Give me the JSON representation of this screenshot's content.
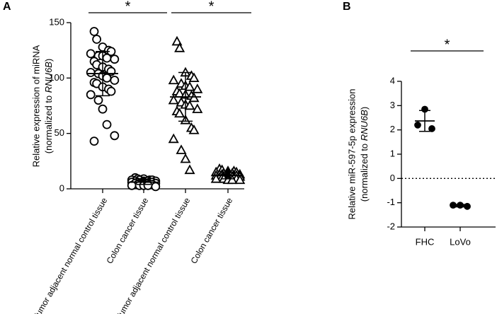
{
  "chart_data": [
    {
      "type": "dot",
      "panel": "A",
      "ylabel": "Relative expression of miRNA",
      "ylabel_parts": [
        "(normalized to ",
        "RNU6B",
        ")"
      ],
      "categories": [
        "Tumor adjacent normal control tissue",
        "Colon cancer tissue",
        "Tumor adjacent normal control tissue",
        "Colon cancer tissue"
      ],
      "values": [
        [
          142,
          135,
          128,
          125,
          124,
          122,
          120,
          120,
          118,
          117,
          115,
          112,
          110,
          108,
          106,
          105,
          104,
          102,
          100,
          98,
          96,
          95,
          92,
          90,
          88,
          85,
          80,
          72,
          58,
          48,
          43
        ],
        [
          10,
          9,
          9,
          8,
          8,
          8,
          8,
          7,
          7,
          7,
          7,
          6,
          6,
          6,
          6,
          6,
          5,
          5,
          5,
          5,
          5,
          4,
          4,
          4,
          4,
          3,
          3,
          3,
          3,
          2
        ],
        [
          133,
          127,
          105,
          102,
          100,
          98,
          95,
          93,
          92,
          90,
          88,
          86,
          85,
          84,
          82,
          80,
          78,
          76,
          75,
          72,
          70,
          68,
          62,
          55,
          53,
          45,
          35,
          27,
          17
        ],
        [
          18,
          17,
          16,
          16,
          15,
          15,
          14,
          14,
          14,
          13,
          13,
          13,
          12,
          12,
          12,
          12,
          11,
          11,
          11,
          11,
          10,
          10,
          10,
          10,
          9,
          9,
          9,
          8,
          8,
          8
        ]
      ],
      "means": [
        104,
        6,
        83,
        12
      ],
      "sds": [
        20,
        2,
        22,
        3
      ],
      "markers": [
        "circle",
        "circle",
        "triangle",
        "triangle"
      ],
      "marker_fill": "#ffffff",
      "color": "#000000",
      "ylim": [
        0,
        150
      ],
      "yticks": [
        0,
        50,
        100,
        150
      ],
      "significance": [
        {
          "pair": [
            0,
            1
          ],
          "label": "*"
        },
        {
          "pair": [
            2,
            3
          ],
          "label": "*"
        }
      ]
    },
    {
      "type": "dot",
      "panel": "B",
      "ylabel": "Relative miR-597-5p expression",
      "ylabel_parts": [
        "(normalized to ",
        "RNU6B",
        ")"
      ],
      "categories": [
        "FHC",
        "LoVo"
      ],
      "values": [
        [
          2.85,
          2.2,
          2.05
        ],
        [
          -1.1,
          -1.1,
          -1.15
        ]
      ],
      "means": [
        2.37,
        -1.12
      ],
      "sds": [
        0.43,
        0.05
      ],
      "markers": [
        "circle",
        "circle"
      ],
      "marker_fill": "#000000",
      "color": "#000000",
      "ylim": [
        -2,
        4
      ],
      "yticks": [
        -2,
        -1,
        0,
        1,
        2,
        3,
        4
      ],
      "reference_line": 0,
      "significance": [
        {
          "pair": [
            0,
            1
          ],
          "label": "*"
        }
      ]
    }
  ]
}
